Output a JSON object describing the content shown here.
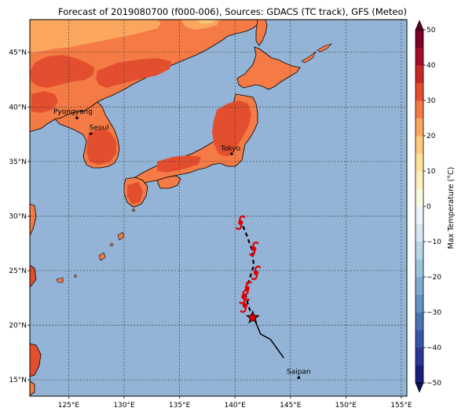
{
  "title": "Forecast of 2019080700 (f000-006), Sources: GDACS (TC track), GFS (Meteo)",
  "map": {
    "lon_range": [
      121.5,
      155.5
    ],
    "lat_range": [
      13.5,
      48.0
    ],
    "lon_ticks": [
      {
        "value": 125,
        "label": "125°E"
      },
      {
        "value": 130,
        "label": "130°E"
      },
      {
        "value": 135,
        "label": "135°E"
      },
      {
        "value": 140,
        "label": "140°E"
      },
      {
        "value": 145,
        "label": "145°E"
      },
      {
        "value": 150,
        "label": "150°E"
      },
      {
        "value": 155,
        "label": "155°E"
      }
    ],
    "lat_ticks": [
      {
        "value": 15,
        "label": "15°N"
      },
      {
        "value": 20,
        "label": "20°N"
      },
      {
        "value": 25,
        "label": "25°N"
      },
      {
        "value": 30,
        "label": "30°N"
      },
      {
        "value": 35,
        "label": "35°N"
      },
      {
        "value": 40,
        "label": "40°N"
      },
      {
        "value": 45,
        "label": "45°N"
      }
    ],
    "ocean_color": "#93b4d6",
    "grid": true
  },
  "cities": [
    {
      "name": "Pyongyang",
      "lon": 125.75,
      "lat": 39.0
    },
    {
      "name": "Seoul",
      "lon": 127.0,
      "lat": 37.55
    },
    {
      "name": "Tokyo",
      "lon": 139.7,
      "lat": 35.7
    },
    {
      "name": "Saipan",
      "lon": 145.75,
      "lat": 15.2
    }
  ],
  "tc_track": {
    "current_position": {
      "lon": 141.6,
      "lat": 20.7
    },
    "history": [
      {
        "lon": 144.4,
        "lat": 17.0
      },
      {
        "lon": 143.7,
        "lat": 18.0
      },
      {
        "lon": 143.2,
        "lat": 18.7
      },
      {
        "lon": 142.3,
        "lat": 19.2
      },
      {
        "lon": 141.9,
        "lat": 20.2
      },
      {
        "lon": 141.6,
        "lat": 20.7
      }
    ],
    "forecast": [
      {
        "lon": 141.6,
        "lat": 20.7
      },
      {
        "lon": 141.2,
        "lat": 21.8
      },
      {
        "lon": 140.9,
        "lat": 23.0
      },
      {
        "lon": 141.3,
        "lat": 24.2
      },
      {
        "lon": 141.7,
        "lat": 25.5
      },
      {
        "lon": 141.5,
        "lat": 27.0
      },
      {
        "lon": 141.0,
        "lat": 28.4
      },
      {
        "lon": 140.5,
        "lat": 29.6
      }
    ],
    "storm_symbols": [
      {
        "lon": 140.5,
        "lat": 29.4
      },
      {
        "lon": 141.7,
        "lat": 27.0
      },
      {
        "lon": 141.9,
        "lat": 24.8
      },
      {
        "lon": 141.1,
        "lat": 23.4
      },
      {
        "lon": 140.8,
        "lat": 22.6
      },
      {
        "lon": 140.9,
        "lat": 21.8
      }
    ]
  },
  "colorbar": {
    "label": "Max Temperature (°C)",
    "min": -50,
    "max": 50,
    "ticks": [
      {
        "value": 50,
        "label": "50"
      },
      {
        "value": 40,
        "label": "40"
      },
      {
        "value": 30,
        "label": "30"
      },
      {
        "value": 20,
        "label": "20"
      },
      {
        "value": 10,
        "label": "10"
      },
      {
        "value": 0,
        "label": "0"
      },
      {
        "value": -10,
        "label": "−10"
      },
      {
        "value": -20,
        "label": "−20"
      },
      {
        "value": -30,
        "label": "−30"
      },
      {
        "value": -40,
        "label": "−40"
      },
      {
        "value": -50,
        "label": "−50"
      }
    ],
    "bins": [
      {
        "from": -50,
        "to": -45,
        "color": "#1c1f7a"
      },
      {
        "from": -45,
        "to": -40,
        "color": "#2a3596"
      },
      {
        "from": -40,
        "to": -35,
        "color": "#3a56a8"
      },
      {
        "from": -35,
        "to": -30,
        "color": "#4c74b5"
      },
      {
        "from": -30,
        "to": -25,
        "color": "#6492c2"
      },
      {
        "from": -25,
        "to": -20,
        "color": "#80aace"
      },
      {
        "from": -20,
        "to": -15,
        "color": "#9cc2da"
      },
      {
        "from": -15,
        "to": -10,
        "color": "#b8d6e6"
      },
      {
        "from": -10,
        "to": -5,
        "color": "#d3e7f0"
      },
      {
        "from": -5,
        "to": 0,
        "color": "#ecf5f7"
      },
      {
        "from": 0,
        "to": 5,
        "color": "#fbfbe2"
      },
      {
        "from": 5,
        "to": 10,
        "color": "#fdf0bd"
      },
      {
        "from": 10,
        "to": 15,
        "color": "#fde29a"
      },
      {
        "from": 15,
        "to": 20,
        "color": "#fdca7c"
      },
      {
        "from": 20,
        "to": 25,
        "color": "#fba65e"
      },
      {
        "from": 25,
        "to": 30,
        "color": "#f47b45"
      },
      {
        "from": 30,
        "to": 35,
        "color": "#e34e2f"
      },
      {
        "from": 35,
        "to": 40,
        "color": "#c92525"
      },
      {
        "from": 40,
        "to": 45,
        "color": "#a30d26"
      },
      {
        "from": 45,
        "to": 50,
        "color": "#7a0026"
      }
    ],
    "under_color": "#101552",
    "over_color": "#5a001c"
  }
}
